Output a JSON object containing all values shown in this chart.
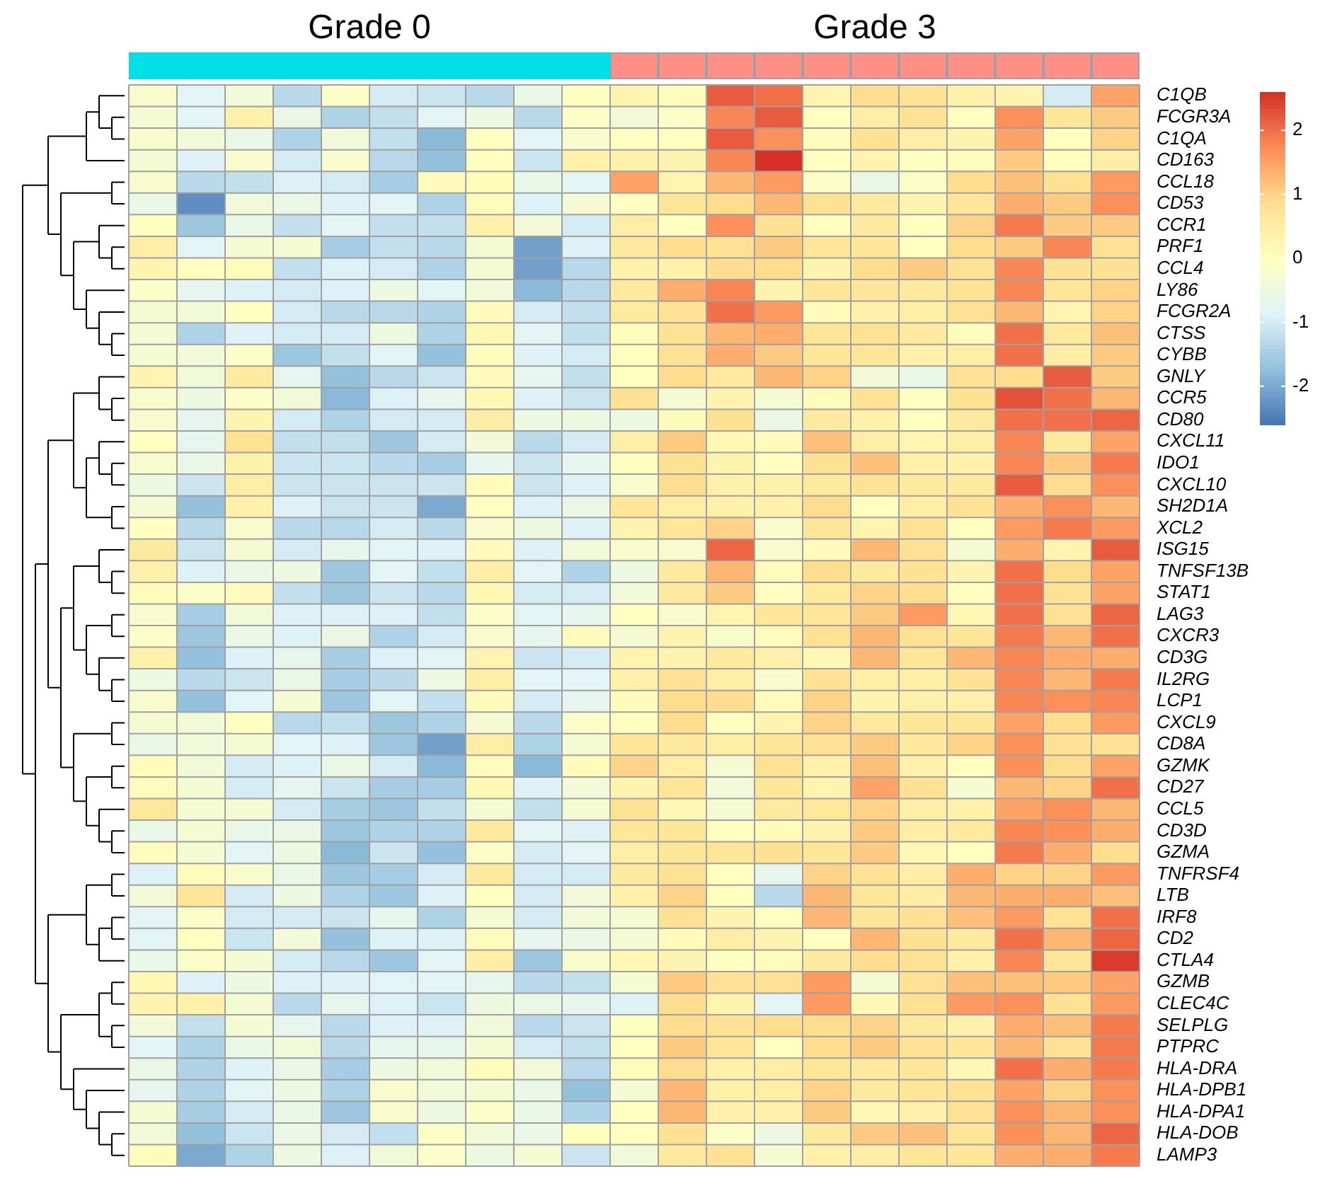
{
  "chart_data": {
    "type": "heatmap",
    "annotations": [
      "Grade 0",
      "Grade 3"
    ],
    "categories": [
      null,
      null,
      null,
      null,
      null,
      null,
      null,
      null,
      null,
      null,
      null,
      null,
      null,
      null,
      null,
      null,
      null,
      null,
      null,
      null,
      null
    ],
    "y_categories": [
      "C1QB",
      "FCGR3A",
      "C1QA",
      "CD163",
      "CCL18",
      "CD53",
      "CCR1",
      "PRF1",
      "CCL4",
      "LY86",
      "FCGR2A",
      "CTSS",
      "CYBB",
      "GNLY",
      "CCR5",
      "CD80",
      "CXCL11",
      "IDO1",
      "CXCL10",
      "SH2D1A",
      "XCL2",
      "ISG15",
      "TNFSF13B",
      "STAT1",
      "LAG3",
      "CXCR3",
      "CD3G",
      "IL2RG",
      "LCP1",
      "CXCL9",
      "CD8A",
      "GZMK",
      "CD27",
      "CCL5",
      "CD3D",
      "GZMA",
      "TNFRSF4",
      "LTB",
      "IRF8",
      "CD2",
      "CTLA4",
      "GZMB",
      "CLEC4C",
      "SELPLG",
      "PTPRC",
      "HLA-DRA",
      "HLA-DPB1",
      "HLA-DPA1",
      "HLA-DOB",
      "LAMP3"
    ],
    "cells": [
      [
        -0.2,
        -0.8,
        -0.4,
        -1.3,
        -0.1,
        -1.0,
        -1.1,
        -1.3,
        -0.6,
        0,
        0.3,
        0.1,
        2.2,
        2.0,
        0.3,
        0.9,
        0.8,
        0.4,
        0.3,
        -1.0,
        1.5
      ],
      [
        -0.3,
        -0.8,
        0.4,
        -0.6,
        -1.4,
        -1.2,
        -0.8,
        -0.5,
        -1.3,
        -0.1,
        -0.4,
        -0.1,
        1.8,
        2.2,
        0,
        0.5,
        0.8,
        0,
        1.7,
        0.7,
        1.1
      ],
      [
        -0.2,
        -0.4,
        -0.6,
        -1.4,
        -0.4,
        -1.2,
        -1.8,
        0,
        -0.8,
        -0.2,
        0,
        0,
        2.2,
        1.7,
        0.1,
        0.8,
        0.5,
        0.3,
        1.5,
        0,
        1.0
      ],
      [
        -0.3,
        -0.9,
        -0.2,
        -1.0,
        -0.2,
        -1.3,
        -1.7,
        0,
        -1.1,
        0.4,
        0.4,
        0.3,
        1.8,
        2.6,
        0,
        0.3,
        0,
        0.1,
        1.1,
        0,
        0.5
      ],
      [
        -0.2,
        -1.3,
        -1.2,
        -0.9,
        -1.0,
        -1.5,
        0.1,
        0.1,
        -0.6,
        -0.8,
        1.5,
        0.3,
        1.3,
        1.6,
        -0.1,
        -0.6,
        -0.1,
        0.9,
        1.2,
        0.8,
        1.6
      ],
      [
        -0.6,
        -2.3,
        -0.4,
        -0.6,
        -0.9,
        -0.8,
        -1.4,
        0.1,
        -0.9,
        -0.3,
        0,
        0.7,
        0.9,
        1.3,
        0.8,
        0.6,
        0.3,
        0.7,
        1.4,
        1.1,
        1.7
      ],
      [
        0,
        -1.6,
        -0.6,
        -1.2,
        -0.8,
        -1.2,
        -1.2,
        0.4,
        -0.4,
        -1.0,
        0.5,
        0,
        1.7,
        0.8,
        0,
        0.6,
        0,
        1.0,
        1.9,
        1.1,
        1.1
      ],
      [
        0.5,
        -0.8,
        -0.3,
        -0.3,
        -1.5,
        -1.2,
        -1.3,
        -0.3,
        -2.1,
        -0.9,
        0.6,
        0.9,
        0.8,
        1.1,
        0.7,
        0.7,
        0,
        0.9,
        1.1,
        1.8,
        0.8
      ],
      [
        0.3,
        0,
        0.1,
        -1.2,
        -0.9,
        -1.0,
        -1.4,
        -0.3,
        -2.1,
        -1.3,
        0.4,
        0.4,
        0.9,
        0.9,
        0.3,
        0.9,
        1.1,
        0.8,
        1.8,
        0.8,
        0.8
      ],
      [
        -0.1,
        -0.7,
        -0.9,
        -1.0,
        -0.9,
        -0.5,
        -0.8,
        -0.4,
        -1.8,
        -1.3,
        0.6,
        1.4,
        1.8,
        0.3,
        0.7,
        0.7,
        0.6,
        0.8,
        1.8,
        0.7,
        1.0
      ],
      [
        -0.3,
        -0.4,
        0,
        -1.0,
        -1.3,
        -1.3,
        -1.4,
        0.1,
        -1.0,
        -1.2,
        0.6,
        0.8,
        2.0,
        1.6,
        0.1,
        0.4,
        0.5,
        0.8,
        1.3,
        0.3,
        1.0
      ],
      [
        -0.3,
        -1.4,
        -0.9,
        -1.0,
        -1.0,
        -0.5,
        -1.4,
        0.2,
        -0.8,
        -1.2,
        0.1,
        0.8,
        1.3,
        1.4,
        0.7,
        0.8,
        0.6,
        0.1,
        2.0,
        0.6,
        1.2
      ],
      [
        -0.3,
        -0.4,
        -0.1,
        -1.6,
        -1.2,
        -0.8,
        -1.7,
        0.1,
        -0.9,
        -1.0,
        0,
        0.8,
        1.4,
        1.1,
        0.7,
        0.7,
        0.4,
        0.5,
        2.0,
        0.5,
        1.1
      ],
      [
        0.3,
        -0.4,
        0.6,
        -0.7,
        -1.7,
        -1.3,
        -1.1,
        0.1,
        -0.7,
        -1.2,
        0,
        0.9,
        0.6,
        1.3,
        1.0,
        -0.4,
        -0.6,
        0.8,
        0.9,
        2.2,
        1.1
      ],
      [
        -0.2,
        -0.5,
        -0.1,
        -0.4,
        -1.8,
        -0.9,
        -0.7,
        0.2,
        -0.9,
        -1.1,
        0.8,
        -0.3,
        0.3,
        -0.3,
        0.1,
        0.8,
        0,
        0.8,
        2.3,
        2.0,
        1.3
      ],
      [
        -0.2,
        -0.7,
        0.3,
        -1.0,
        -1.4,
        -1.0,
        -1.0,
        0.5,
        -0.5,
        -0.5,
        -0.5,
        0.1,
        0.8,
        -0.6,
        0.6,
        0.4,
        0,
        0.6,
        2.0,
        2.0,
        2.1
      ],
      [
        0,
        -0.7,
        0.8,
        -1.2,
        -1.2,
        -1.6,
        -1.0,
        -0.4,
        -1.3,
        -1.0,
        0.5,
        1.1,
        0.2,
        0.1,
        1.2,
        0.5,
        0.3,
        0.5,
        1.8,
        0.6,
        1.5
      ],
      [
        -0.2,
        -0.6,
        0.4,
        -1.1,
        -1.1,
        -1.3,
        -1.5,
        -0.7,
        -1.1,
        -0.7,
        0,
        0.8,
        0.3,
        0,
        0.8,
        1.2,
        0.4,
        0.4,
        1.8,
        1.1,
        1.9
      ],
      [
        -0.5,
        -1.1,
        0.5,
        -1.1,
        -1.1,
        -1.1,
        -1.1,
        0.1,
        -1.1,
        -0.9,
        -0.2,
        0.9,
        0.4,
        0.4,
        0.6,
        0.8,
        0.6,
        0.6,
        2.2,
        0.9,
        1.7
      ],
      [
        -0.3,
        -1.7,
        0.4,
        -0.9,
        -1.1,
        -1.1,
        -2.0,
        0,
        -0.9,
        -0.6,
        0.7,
        0.5,
        0.4,
        0.4,
        0.9,
        0,
        0.5,
        0.8,
        1.4,
        1.7,
        1.3
      ],
      [
        0,
        -1.3,
        -0.2,
        -1.3,
        -1.3,
        -1.0,
        -1.3,
        -0.2,
        -0.5,
        -0.9,
        0.3,
        0.7,
        1.0,
        -0.2,
        0.7,
        0.3,
        0.8,
        0,
        1.6,
        1.9,
        1.6
      ],
      [
        0.6,
        -1.1,
        -0.3,
        -1.0,
        -0.7,
        -0.8,
        -0.9,
        0.1,
        -0.9,
        -0.4,
        -0.2,
        -0.2,
        2.1,
        -0.2,
        0.1,
        1.3,
        0.8,
        -0.3,
        1.4,
        0.3,
        2.2
      ],
      [
        0.4,
        -0.9,
        -0.6,
        -0.5,
        -1.6,
        -0.8,
        -1.2,
        0.5,
        -0.8,
        -1.4,
        -0.5,
        0.6,
        1.3,
        0.1,
        0.9,
        0.6,
        0.8,
        0.3,
        2.0,
        0.9,
        1.5
      ],
      [
        0.1,
        -0.1,
        0.1,
        -1.2,
        -1.6,
        -1.1,
        -1.3,
        0.2,
        -1.0,
        -1.0,
        -0.4,
        0.6,
        1.1,
        0,
        0.6,
        1.0,
        0.9,
        0,
        2.0,
        0.8,
        1.5
      ],
      [
        -0.2,
        -1.5,
        -0.4,
        -0.9,
        -0.9,
        -0.9,
        -1.2,
        -0.1,
        -0.8,
        -0.7,
        0,
        -0.2,
        0.3,
        0.7,
        0.7,
        1.1,
        1.6,
        0.2,
        2.0,
        0.8,
        2.1
      ],
      [
        -0.1,
        -1.6,
        -0.6,
        -0.9,
        -0.6,
        -1.4,
        -1.0,
        -0.2,
        -0.7,
        0.1,
        -0.3,
        0.3,
        -0.2,
        0.1,
        0.8,
        1.3,
        0.8,
        0.7,
        1.9,
        1.3,
        2.0
      ],
      [
        0.4,
        -1.7,
        -0.9,
        -0.7,
        -1.5,
        -0.9,
        -0.8,
        0.3,
        -1.1,
        -1.0,
        0.3,
        0.3,
        0.6,
        0.4,
        0.2,
        1.3,
        0.7,
        1.3,
        1.8,
        1.4,
        1.4
      ],
      [
        -0.5,
        -1.3,
        -1.1,
        -0.6,
        -1.5,
        -1.3,
        -0.5,
        0.5,
        -0.8,
        -0.8,
        0.4,
        0.8,
        0.5,
        -0.2,
        0.8,
        0.5,
        0.5,
        0.8,
        1.8,
        1.3,
        1.9
      ],
      [
        -0.2,
        -1.7,
        -0.8,
        -0.3,
        -1.6,
        -0.8,
        -1.2,
        0.1,
        -1.0,
        -0.7,
        0.1,
        0.9,
        0.9,
        0.1,
        1.0,
        0.3,
        0.4,
        0.4,
        1.8,
        1.7,
        1.8
      ],
      [
        -0.3,
        -0.4,
        0,
        -1.3,
        -1.2,
        -1.6,
        -1.4,
        -0.3,
        -1.3,
        -0.1,
        0,
        0.9,
        0,
        0.3,
        1.0,
        0.6,
        0.7,
        0.7,
        1.5,
        0.9,
        1.6
      ],
      [
        -0.6,
        -0.4,
        -0.3,
        -0.8,
        -0.9,
        -1.6,
        -2.1,
        0.5,
        -1.4,
        -0.3,
        0.7,
        0.6,
        0.5,
        0.7,
        0.8,
        1.1,
        0.6,
        1.0,
        1.7,
        0.8,
        0.8
      ],
      [
        0.1,
        -0.4,
        -1.0,
        -0.9,
        -0.6,
        -1.0,
        -1.8,
        0.1,
        -1.8,
        0.1,
        1.0,
        0.5,
        -0.3,
        0.8,
        0.4,
        1.2,
        0.4,
        0,
        1.7,
        0.9,
        1.5
      ],
      [
        0.1,
        -0.3,
        -1.0,
        -0.7,
        -1.1,
        -1.5,
        -1.5,
        0.2,
        -0.9,
        -0.4,
        0.3,
        0.7,
        -0.4,
        0.7,
        0.3,
        1.5,
        0.8,
        -0.3,
        1.3,
        1.0,
        2.0
      ],
      [
        0.7,
        -0.3,
        -0.3,
        -1.0,
        -1.5,
        -1.6,
        -1.2,
        -0.3,
        -1.2,
        -0.3,
        0.8,
        0.2,
        -0.3,
        0.6,
        0.7,
        1.0,
        0.5,
        0.4,
        1.5,
        1.7,
        1.3
      ],
      [
        -0.6,
        -0.3,
        -0.6,
        -0.6,
        -1.6,
        -1.4,
        -1.4,
        0.6,
        -0.8,
        -0.9,
        0.7,
        0.7,
        0,
        0.1,
        0.3,
        1.1,
        0.5,
        0.6,
        1.8,
        1.7,
        1.4
      ],
      [
        0.1,
        -0.3,
        -0.8,
        -0.5,
        -1.8,
        -1.1,
        -1.7,
        -0.1,
        -1.0,
        -0.8,
        0.5,
        0.7,
        0.7,
        0.8,
        0.7,
        1.1,
        0.2,
        0,
        1.9,
        1.4,
        0.9
      ],
      [
        -0.9,
        0.1,
        -0.2,
        -0.6,
        -1.6,
        -1.5,
        -1.0,
        0.6,
        -1.0,
        -1.0,
        0.6,
        0.8,
        0,
        -0.7,
        1.0,
        0.8,
        0.5,
        1.4,
        1.0,
        1.0,
        1.6
      ],
      [
        -0.4,
        0.7,
        -1.0,
        -0.5,
        -1.4,
        -1.6,
        -0.9,
        0,
        -1.0,
        -0.4,
        0.4,
        1.0,
        0,
        -1.3,
        1.3,
        0.7,
        0.5,
        1.3,
        1.4,
        1.4,
        1.2
      ],
      [
        -0.8,
        -0.1,
        -1.0,
        -1.0,
        -1.1,
        -0.7,
        -1.4,
        -0.3,
        -1.0,
        -0.4,
        -0.3,
        0.8,
        0.3,
        0,
        1.3,
        0.7,
        0.8,
        1.2,
        1.6,
        0.8,
        2.0
      ],
      [
        -0.8,
        0,
        -1.1,
        -0.4,
        -1.7,
        -0.9,
        -0.9,
        0.1,
        -0.7,
        -0.6,
        -0.3,
        0.1,
        0.5,
        0.3,
        0,
        1.3,
        0.8,
        0.6,
        2.0,
        1.3,
        2.1
      ],
      [
        -0.6,
        -0.1,
        -0.3,
        -1.0,
        -1.3,
        -1.6,
        -0.8,
        0.5,
        -1.6,
        -0.2,
        0.2,
        0.3,
        0,
        0.1,
        0.6,
        0.9,
        0.8,
        0.4,
        1.8,
        0.7,
        2.5
      ],
      [
        0.2,
        -0.9,
        -0.5,
        -0.9,
        -0.9,
        -0.8,
        -0.8,
        -0.7,
        -1.3,
        -1.2,
        -0.3,
        1.1,
        0.8,
        0.8,
        1.6,
        -0.3,
        0.8,
        1.2,
        1.2,
        1.1,
        1.5
      ],
      [
        0.3,
        0.4,
        -0.3,
        -1.3,
        -0.7,
        -0.9,
        -1.1,
        -0.5,
        -0.6,
        -0.7,
        -0.9,
        0.9,
        0.3,
        -0.8,
        1.6,
        0.2,
        0.8,
        1.6,
        1.7,
        0.8,
        1.6
      ],
      [
        -0.4,
        -1.2,
        -0.3,
        -0.7,
        -1.3,
        -0.9,
        -0.9,
        -0.4,
        -1.3,
        -1.1,
        0,
        0.9,
        0.8,
        0.9,
        0.9,
        1.0,
        0.6,
        0.4,
        1.4,
        1.2,
        1.9
      ],
      [
        -0.8,
        -1.4,
        -0.6,
        -0.4,
        -1.3,
        -0.7,
        -0.7,
        -0.3,
        -1.0,
        -1.2,
        0,
        1.1,
        0.7,
        0,
        0.9,
        1.1,
        0.8,
        0.7,
        1.3,
        0.8,
        1.9
      ],
      [
        -0.6,
        -1.4,
        -0.9,
        -0.6,
        -1.5,
        -0.5,
        -0.4,
        0.1,
        -0.4,
        -1.3,
        0.1,
        0.9,
        0.4,
        0.5,
        0.7,
        0.6,
        0.7,
        0.2,
        2.0,
        1.4,
        1.9
      ],
      [
        -0.7,
        -1.4,
        -0.8,
        -0.5,
        -1.4,
        -0.2,
        -0.4,
        -0.3,
        -0.6,
        -1.7,
        -0.3,
        1.3,
        0.4,
        0.5,
        1.0,
        0.6,
        0.7,
        0.8,
        1.5,
        1.0,
        1.7
      ],
      [
        -0.3,
        -1.5,
        -1.0,
        -0.6,
        -1.6,
        -0.2,
        -0.5,
        -0.1,
        -0.6,
        -1.4,
        0,
        1.3,
        0.4,
        0.4,
        1.1,
        0.2,
        0.4,
        0.8,
        1.7,
        1.3,
        1.7
      ],
      [
        -0.4,
        -1.7,
        -1.1,
        -0.6,
        -1.0,
        -1.2,
        -0.1,
        -0.4,
        -0.6,
        0,
        0,
        0.8,
        -0.1,
        -0.5,
        0.6,
        1.1,
        1.2,
        0.7,
        1.7,
        1.3,
        2.1
      ],
      [
        0.1,
        -2.0,
        -1.4,
        -0.5,
        -0.9,
        -0.4,
        -0.1,
        -0.5,
        -0.3,
        -1.1,
        -0.4,
        0.6,
        0.8,
        -0.3,
        0.4,
        0.5,
        0.7,
        0.7,
        1.4,
        1.4,
        1.9
      ]
    ],
    "clim": [
      -2.6,
      2.6
    ],
    "cticks": [
      -2,
      -1,
      0,
      1,
      2
    ]
  }
}
